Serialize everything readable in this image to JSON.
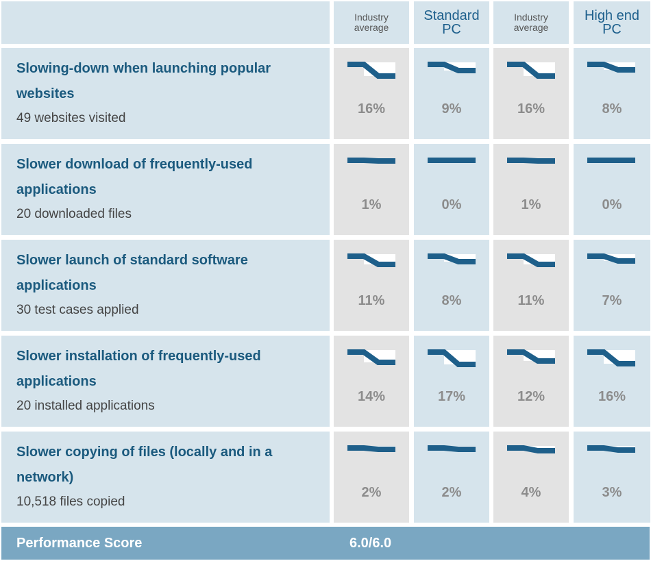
{
  "columns": [
    {
      "lines": [
        "Industry",
        "average"
      ],
      "style": "small"
    },
    {
      "lines": [
        "Standard",
        "PC"
      ],
      "style": "big"
    },
    {
      "lines": [
        "Industry",
        "average"
      ],
      "style": "small"
    },
    {
      "lines": [
        "High end",
        "PC"
      ],
      "style": "big"
    }
  ],
  "rows": [
    {
      "title_lines": [
        "Slowing-down when launching popular",
        "websites"
      ],
      "subtitle": "49 websites visited",
      "values": [
        "16%",
        "9%",
        "16%",
        "8%"
      ],
      "slowdown": [
        16,
        9,
        16,
        8
      ]
    },
    {
      "title_lines": [
        "Slower download of frequently-used",
        "applications"
      ],
      "subtitle": "20 downloaded files",
      "values": [
        "1%",
        "0%",
        "1%",
        "0%"
      ],
      "slowdown": [
        1,
        0,
        1,
        0
      ]
    },
    {
      "title_lines": [
        "Slower launch of standard software",
        "applications"
      ],
      "subtitle": "30 test cases applied",
      "values": [
        "11%",
        "8%",
        "11%",
        "7%"
      ],
      "slowdown": [
        11,
        8,
        11,
        7
      ]
    },
    {
      "title_lines": [
        "Slower installation of frequently-used",
        "applications"
      ],
      "subtitle": "20 installed applications",
      "values": [
        "14%",
        "17%",
        "12%",
        "16%"
      ],
      "slowdown": [
        14,
        17,
        12,
        16
      ]
    },
    {
      "title_lines": [
        "Slower copying of files (locally and in a",
        "network)"
      ],
      "subtitle": "10,518 files copied",
      "values": [
        "2%",
        "2%",
        "4%",
        "3%"
      ],
      "slowdown": [
        2,
        2,
        4,
        3
      ]
    }
  ],
  "score": {
    "label": "Performance Score",
    "value": "6.0/6.0"
  },
  "colors": {
    "spark_line": "#1e5f8a",
    "gray_cell": "#e3e3e3",
    "blue_cell": "#d6e4ec",
    "score_bar": "#7aa7c2"
  }
}
